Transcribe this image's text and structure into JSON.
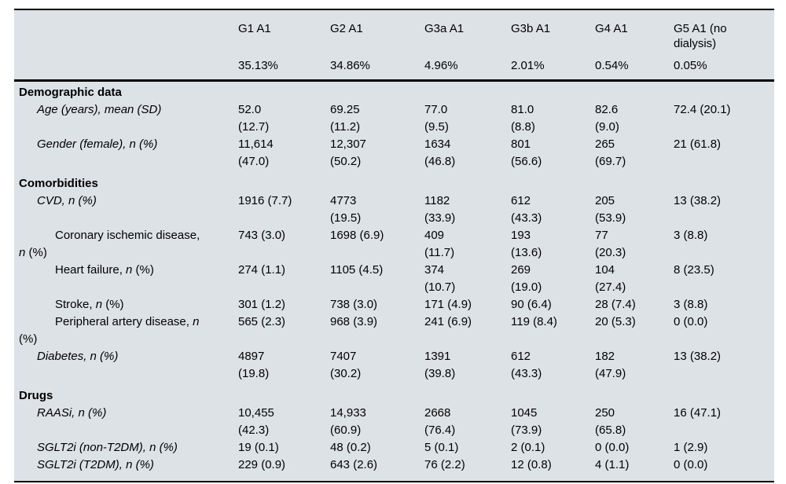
{
  "table": {
    "header": {
      "corner": "",
      "columns": [
        {
          "group": "G1 A1",
          "share": "35.13%"
        },
        {
          "group": "G2 A1",
          "share": "34.86%"
        },
        {
          "group": "G3a A1",
          "share": "4.96%"
        },
        {
          "group": "G3b A1",
          "share": "2.01%"
        },
        {
          "group": "G4 A1",
          "share": "0.54%"
        },
        {
          "group": "G5 A1 (no dialysis)",
          "share": "0.05%"
        }
      ]
    },
    "rows": [
      {
        "kind": "section",
        "name": "demographic-data",
        "segments": [
          {
            "t": "Demographic data",
            "b": true
          }
        ]
      },
      {
        "kind": "item",
        "level": 1,
        "name": "age",
        "segments": [
          {
            "t": "Age (years), mean (SD)",
            "i": true
          }
        ],
        "values": [
          "52.0\n(12.7)",
          "69.25\n(11.2)",
          "77.0\n(9.5)",
          "81.0\n(8.8)",
          "82.6\n(9.0)",
          "72.4 (20.1)"
        ]
      },
      {
        "kind": "item",
        "level": 1,
        "name": "gender-female",
        "segments": [
          {
            "t": "Gender (female), n (%)",
            "i": true
          }
        ],
        "values": [
          "11,614\n(47.0)",
          "12,307\n(50.2)",
          "1634\n(46.8)",
          "801\n(56.6)",
          "265\n(69.7)",
          "21 (61.8)"
        ]
      },
      {
        "kind": "section",
        "name": "comorbidities",
        "segments": [
          {
            "t": "Comorbidities",
            "b": true
          }
        ]
      },
      {
        "kind": "item",
        "level": 1,
        "name": "cvd",
        "segments": [
          {
            "t": "CVD, n (%)",
            "i": true
          }
        ],
        "values": [
          "1916 (7.7)",
          "4773\n(19.5)",
          "1182\n(33.9)",
          "612\n(43.3)",
          "205\n(53.9)",
          "13 (38.2)"
        ]
      },
      {
        "kind": "item",
        "level": 2,
        "name": "coronary-ischemic-disease",
        "segments": [
          {
            "t": "Coronary ischemic disease,\n"
          },
          {
            "t": "n",
            "i": true
          },
          {
            "t": " (%)"
          }
        ],
        "values": [
          "743 (3.0)",
          "1698 (6.9)",
          "409\n(11.7)",
          "193\n(13.6)",
          "77\n(20.3)",
          "3 (8.8)"
        ]
      },
      {
        "kind": "item",
        "level": 2,
        "name": "heart-failure",
        "segments": [
          {
            "t": "Heart failure, "
          },
          {
            "t": "n",
            "i": true
          },
          {
            "t": " (%)"
          }
        ],
        "values": [
          "274 (1.1)",
          "1105 (4.5)",
          "374\n(10.7)",
          "269\n(19.0)",
          "104\n(27.4)",
          "8 (23.5)"
        ]
      },
      {
        "kind": "item",
        "level": 2,
        "name": "stroke",
        "segments": [
          {
            "t": "Stroke, "
          },
          {
            "t": "n",
            "i": true
          },
          {
            "t": " (%)"
          }
        ],
        "values": [
          "301 (1.2)",
          "738 (3.0)",
          "171 (4.9)",
          "90 (6.4)",
          "28 (7.4)",
          "3 (8.8)"
        ]
      },
      {
        "kind": "item",
        "level": 2,
        "name": "peripheral-artery-disease",
        "segments": [
          {
            "t": "Peripheral artery disease, "
          },
          {
            "t": "n",
            "i": true
          },
          {
            "t": "\n(%)"
          }
        ],
        "values": [
          "565 (2.3)",
          "968 (3.9)",
          "241 (6.9)",
          "119 (8.4)",
          "20 (5.3)",
          "0 (0.0)"
        ]
      },
      {
        "kind": "item",
        "level": 1,
        "name": "diabetes",
        "segments": [
          {
            "t": "Diabetes, n (%)",
            "i": true
          }
        ],
        "values": [
          "4897\n(19.8)",
          "7407\n(30.2)",
          "1391\n(39.8)",
          "612\n(43.3)",
          "182\n(47.9)",
          "13 (38.2)"
        ]
      },
      {
        "kind": "section",
        "name": "drugs",
        "segments": [
          {
            "t": "Drugs",
            "b": true
          }
        ]
      },
      {
        "kind": "item",
        "level": 1,
        "name": "raasi",
        "segments": [
          {
            "t": "RAASi, n (%)",
            "i": true
          }
        ],
        "values": [
          "10,455\n(42.3)",
          "14,933\n(60.9)",
          "2668\n(76.4)",
          "1045\n(73.9)",
          "250\n(65.8)",
          "16 (47.1)"
        ]
      },
      {
        "kind": "item",
        "level": 1,
        "name": "sglt2i-non-t2dm",
        "segments": [
          {
            "t": "SGLT2i (non-T2DM), n (%)",
            "i": true
          }
        ],
        "values": [
          "19 (0.1)",
          "48 (0.2)",
          "5 (0.1)",
          "2 (0.1)",
          "0 (0.0)",
          "1 (2.9)"
        ]
      },
      {
        "kind": "item",
        "level": 1,
        "name": "sglt2i-t2dm",
        "segments": [
          {
            "t": "SGLT2i (T2DM), n (%)",
            "i": true
          }
        ],
        "values": [
          "229 (0.9)",
          "643 (2.6)",
          "76 (2.2)",
          "12 (0.8)",
          "4 (1.1)",
          "0 (0.0)"
        ]
      }
    ]
  },
  "colors": {
    "table_background": "#dde2e6",
    "rule": "#000000",
    "text": "#000000"
  },
  "chart_data": {
    "type": "table",
    "title": "Baseline characteristics by KDIGO CKD category (A1)",
    "columns": [
      "G1 A1",
      "G2 A1",
      "G3a A1",
      "G3b A1",
      "G4 A1",
      "G5 A1 (no dialysis)"
    ],
    "column_shares_pct": [
      35.13,
      34.86,
      4.96,
      2.01,
      0.54,
      0.05
    ],
    "rows": [
      {
        "section": "Demographic data",
        "label": "Age (years), mean (SD)",
        "values": [
          "52.0 (12.7)",
          "69.25 (11.2)",
          "77.0 (9.5)",
          "81.0 (8.8)",
          "82.6 (9.0)",
          "72.4 (20.1)"
        ]
      },
      {
        "section": "Demographic data",
        "label": "Gender (female), n (%)",
        "values": [
          "11,614 (47.0)",
          "12,307 (50.2)",
          "1634 (46.8)",
          "801 (56.6)",
          "265 (69.7)",
          "21 (61.8)"
        ]
      },
      {
        "section": "Comorbidities",
        "label": "CVD, n (%)",
        "values": [
          "1916 (7.7)",
          "4773 (19.5)",
          "1182 (33.9)",
          "612 (43.3)",
          "205 (53.9)",
          "13 (38.2)"
        ]
      },
      {
        "section": "Comorbidities",
        "label": "Coronary ischemic disease, n (%)",
        "values": [
          "743 (3.0)",
          "1698 (6.9)",
          "409 (11.7)",
          "193 (13.6)",
          "77 (20.3)",
          "3 (8.8)"
        ]
      },
      {
        "section": "Comorbidities",
        "label": "Heart failure, n (%)",
        "values": [
          "274 (1.1)",
          "1105 (4.5)",
          "374 (10.7)",
          "269 (19.0)",
          "104 (27.4)",
          "8 (23.5)"
        ]
      },
      {
        "section": "Comorbidities",
        "label": "Stroke, n (%)",
        "values": [
          "301 (1.2)",
          "738 (3.0)",
          "171 (4.9)",
          "90 (6.4)",
          "28 (7.4)",
          "3 (8.8)"
        ]
      },
      {
        "section": "Comorbidities",
        "label": "Peripheral artery disease, n (%)",
        "values": [
          "565 (2.3)",
          "968 (3.9)",
          "241 (6.9)",
          "119 (8.4)",
          "20 (5.3)",
          "0 (0.0)"
        ]
      },
      {
        "section": "Comorbidities",
        "label": "Diabetes, n (%)",
        "values": [
          "4897 (19.8)",
          "7407 (30.2)",
          "1391 (39.8)",
          "612 (43.3)",
          "182 (47.9)",
          "13 (38.2)"
        ]
      },
      {
        "section": "Drugs",
        "label": "RAASi, n (%)",
        "values": [
          "10,455 (42.3)",
          "14,933 (60.9)",
          "2668 (76.4)",
          "1045 (73.9)",
          "250 (65.8)",
          "16 (47.1)"
        ]
      },
      {
        "section": "Drugs",
        "label": "SGLT2i (non-T2DM), n (%)",
        "values": [
          "19 (0.1)",
          "48 (0.2)",
          "5 (0.1)",
          "2 (0.1)",
          "0 (0.0)",
          "1 (2.9)"
        ]
      },
      {
        "section": "Drugs",
        "label": "SGLT2i (T2DM), n (%)",
        "values": [
          "229 (0.9)",
          "643 (2.6)",
          "76 (2.2)",
          "12 (0.8)",
          "4 (1.1)",
          "0 (0.0)"
        ]
      }
    ]
  }
}
